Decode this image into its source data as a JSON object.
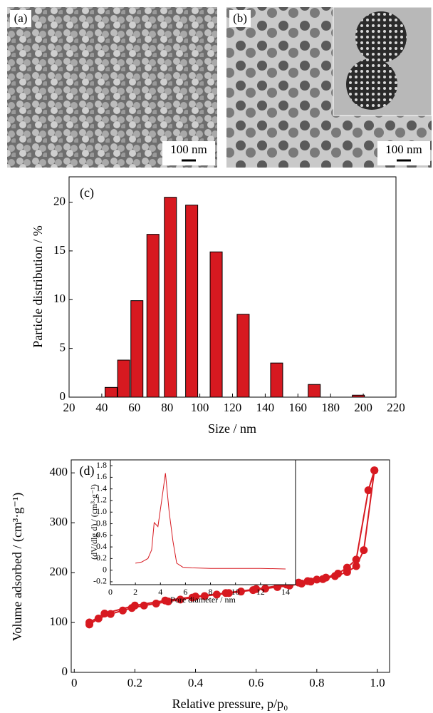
{
  "panels": [
    {
      "label": "(a)",
      "scale_bar": "100 nm"
    },
    {
      "label": "(b)",
      "scale_bar": "100 nm"
    }
  ],
  "chart_data": [
    {
      "type": "bar",
      "annotation": "(c)",
      "x_label": "Size / nm",
      "y_label": "Particle distribution / %",
      "color": "#d71920",
      "x": [
        45.7,
        53.4,
        61.5,
        71.3,
        82,
        95,
        110,
        126.5,
        147,
        170,
        197
      ],
      "values": [
        1.0,
        3.8,
        9.9,
        16.7,
        20.5,
        19.7,
        14.9,
        8.5,
        3.5,
        1.3,
        0.2
      ],
      "xlim": [
        20,
        220
      ],
      "xticks": [
        20,
        40,
        60,
        80,
        100,
        120,
        140,
        160,
        180,
        200,
        220
      ],
      "ylim": [
        0,
        22.6
      ],
      "yticks": [
        0,
        5,
        10,
        15,
        20
      ]
    },
    {
      "type": "line",
      "annotation": "(d)",
      "x_label": "Relative pressure, p/p₀",
      "y_label": "Volume adsorbed / (cm³·g⁻¹)",
      "markers": true,
      "series": [
        {
          "color": "#d71920",
          "x": [
            0.05,
            0.08,
            0.12,
            0.16,
            0.19,
            0.23,
            0.27,
            0.31,
            0.35,
            0.39,
            0.43,
            0.47,
            0.51,
            0.55,
            0.59,
            0.63,
            0.67,
            0.71,
            0.75,
            0.78,
            0.82,
            0.86,
            0.9,
            0.93,
            0.955,
            0.99
          ],
          "values": [
            96,
            108,
            117,
            124,
            129,
            134,
            138,
            142,
            146,
            150,
            153,
            156,
            159,
            162,
            165,
            168,
            171,
            174,
            178,
            182,
            187,
            193,
            201,
            213,
            245,
            405
          ]
        },
        {
          "color": "#d71920",
          "x": [
            0.99,
            0.97,
            0.93,
            0.9,
            0.87,
            0.83,
            0.8,
            0.77,
            0.74,
            0.7,
            0.6,
            0.5,
            0.4,
            0.3,
            0.2,
            0.1,
            0.05
          ],
          "values": [
            405,
            365,
            226,
            210,
            198,
            190,
            186,
            183,
            180,
            176,
            167,
            159,
            152,
            144,
            134,
            118,
            100
          ]
        }
      ],
      "xlim": [
        -0.01,
        1.04
      ],
      "xticks": [
        0,
        0.2,
        0.4,
        0.6,
        0.8,
        {
          "value": 1,
          "label": "1.0"
        }
      ],
      "ylim": [
        0,
        426
      ],
      "yticks": [
        0,
        100,
        200,
        300,
        400
      ]
    },
    {
      "type": "line",
      "x_label": "Pore diameter / nm",
      "y_label": "(dV/dlg d) / (cm³·g⁻¹)",
      "color": "#d71920",
      "x": [
        2,
        2.5,
        3,
        3.3,
        3.5,
        3.8,
        4.1,
        4.4,
        4.7,
        5.0,
        5.3,
        5.8,
        6.5,
        8,
        10,
        12,
        14
      ],
      "values": [
        0.12,
        0.14,
        0.2,
        0.35,
        0.82,
        0.75,
        1.2,
        1.67,
        1.0,
        0.5,
        0.12,
        0.05,
        0.04,
        0.03,
        0.03,
        0.03,
        0.02
      ],
      "xlim": [
        0,
        14.8
      ],
      "xticks": [
        0,
        2,
        4,
        6,
        8,
        10,
        12,
        14
      ],
      "ylim": [
        -0.25,
        1.9
      ],
      "yticks": [
        -0.2,
        0,
        0.2,
        0.4,
        0.6,
        0.8,
        {
          "value": 1,
          "label": "1.0"
        },
        1.2,
        1.4,
        1.6,
        1.8
      ]
    }
  ]
}
